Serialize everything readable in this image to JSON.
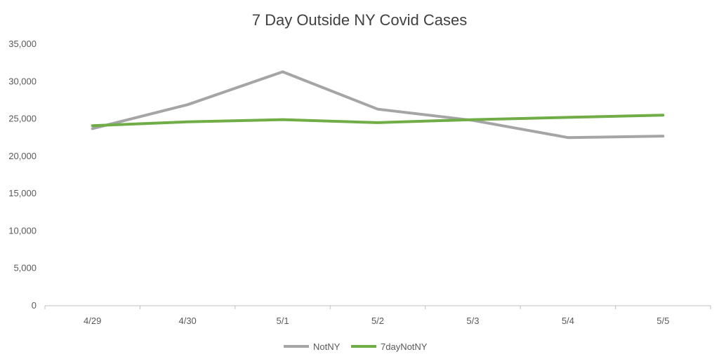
{
  "chart_data": {
    "type": "line",
    "title": "7 Day Outside NY Covid Cases",
    "xlabel": "",
    "ylabel": "",
    "categories": [
      "4/29",
      "4/30",
      "5/1",
      "5/2",
      "5/3",
      "5/4",
      "5/5"
    ],
    "series": [
      {
        "name": "NotNY",
        "color": "#a5a5a5",
        "values": [
          23700,
          26900,
          31300,
          26300,
          24800,
          22500,
          22700
        ]
      },
      {
        "name": "7dayNotNY",
        "color": "#70ad47",
        "values": [
          24100,
          24600,
          24900,
          24500,
          24900,
          25200,
          25500
        ]
      }
    ],
    "ylim": [
      0,
      35000
    ],
    "yticks": [
      "0",
      "5,000",
      "10,000",
      "15,000",
      "20,000",
      "25,000",
      "30,000",
      "35,000"
    ],
    "ytick_values": [
      0,
      5000,
      10000,
      15000,
      20000,
      25000,
      30000,
      35000
    ],
    "grid": false,
    "legend_position": "bottom"
  }
}
